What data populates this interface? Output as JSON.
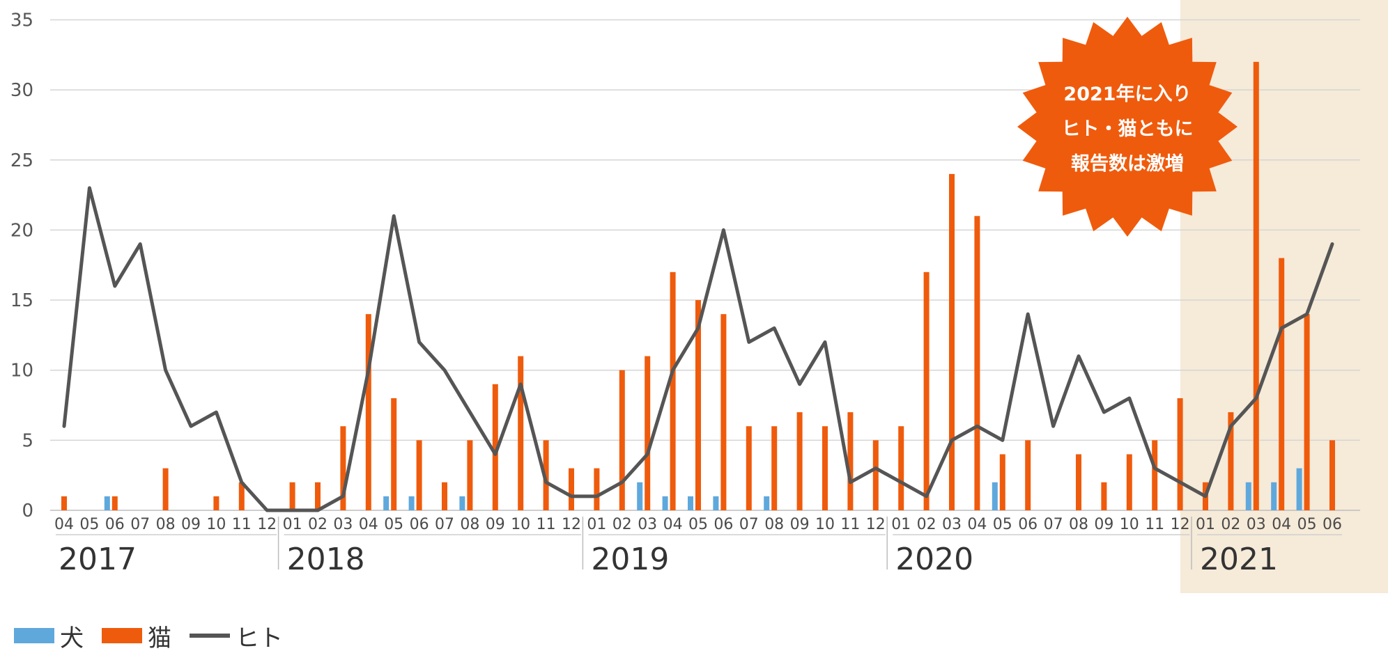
{
  "colors": {
    "dog": "#5fa8dc",
    "cat": "#ef5b0c",
    "human": "#555555",
    "highlight_bg": "#f6ead9",
    "grid": "#d5d5d5"
  },
  "chart_data": {
    "type": "bar+line",
    "ylim": [
      0,
      35
    ],
    "yticks": [
      0,
      5,
      10,
      15,
      20,
      25,
      30,
      35
    ],
    "month_labels": [
      "04",
      "05",
      "06",
      "07",
      "08",
      "09",
      "10",
      "11",
      "12",
      "01",
      "02",
      "03",
      "04",
      "05",
      "06",
      "07",
      "08",
      "09",
      "10",
      "11",
      "12",
      "01",
      "02",
      "03",
      "04",
      "05",
      "06",
      "07",
      "08",
      "09",
      "10",
      "11",
      "12",
      "01",
      "02",
      "03",
      "04",
      "05",
      "06",
      "07",
      "08",
      "09",
      "10",
      "11",
      "12",
      "01",
      "02",
      "03",
      "04",
      "05",
      "06"
    ],
    "year_labels": [
      "2017",
      "2018",
      "2019",
      "2020",
      "2021"
    ],
    "year_start_index": [
      0,
      9,
      21,
      33,
      45
    ],
    "highlight_start_index": 45,
    "series": [
      {
        "name": "犬",
        "type": "bar",
        "values": [
          0,
          0,
          1,
          0,
          0,
          0,
          0,
          0,
          0,
          0,
          0,
          0,
          0,
          1,
          1,
          0,
          1,
          0,
          0,
          0,
          0,
          0,
          0,
          2,
          1,
          1,
          1,
          0,
          1,
          0,
          0,
          0,
          0,
          0,
          0,
          0,
          0,
          2,
          0,
          0,
          0,
          0,
          0,
          0,
          0,
          0,
          0,
          2,
          2,
          3,
          0
        ]
      },
      {
        "name": "猫",
        "type": "bar",
        "values": [
          1,
          0,
          1,
          0,
          3,
          0,
          1,
          2,
          0,
          2,
          2,
          6,
          14,
          8,
          5,
          2,
          5,
          9,
          11,
          5,
          3,
          3,
          10,
          11,
          17,
          15,
          14,
          6,
          6,
          7,
          6,
          7,
          5,
          6,
          17,
          24,
          21,
          4,
          5,
          0,
          4,
          2,
          4,
          5,
          8,
          2,
          7,
          32,
          18,
          14,
          5
        ]
      },
      {
        "name": "ヒト",
        "type": "line",
        "values": [
          6,
          23,
          16,
          19,
          10,
          6,
          7,
          2,
          0,
          0,
          0,
          1,
          10,
          21,
          12,
          10,
          7,
          4,
          9,
          2,
          1,
          1,
          2,
          4,
          10,
          13,
          20,
          12,
          13,
          9,
          12,
          2,
          3,
          2,
          1,
          5,
          6,
          5,
          14,
          6,
          11,
          7,
          8,
          3,
          2,
          1,
          6,
          8,
          13,
          14,
          19
        ]
      }
    ],
    "annotation": [
      "2021年に入り",
      "ヒト・猫ともに",
      "報告数は激増"
    ],
    "legend_position": "bottom-left"
  },
  "legend": {
    "dog": "犬",
    "cat": "猫",
    "human": "ヒト"
  }
}
